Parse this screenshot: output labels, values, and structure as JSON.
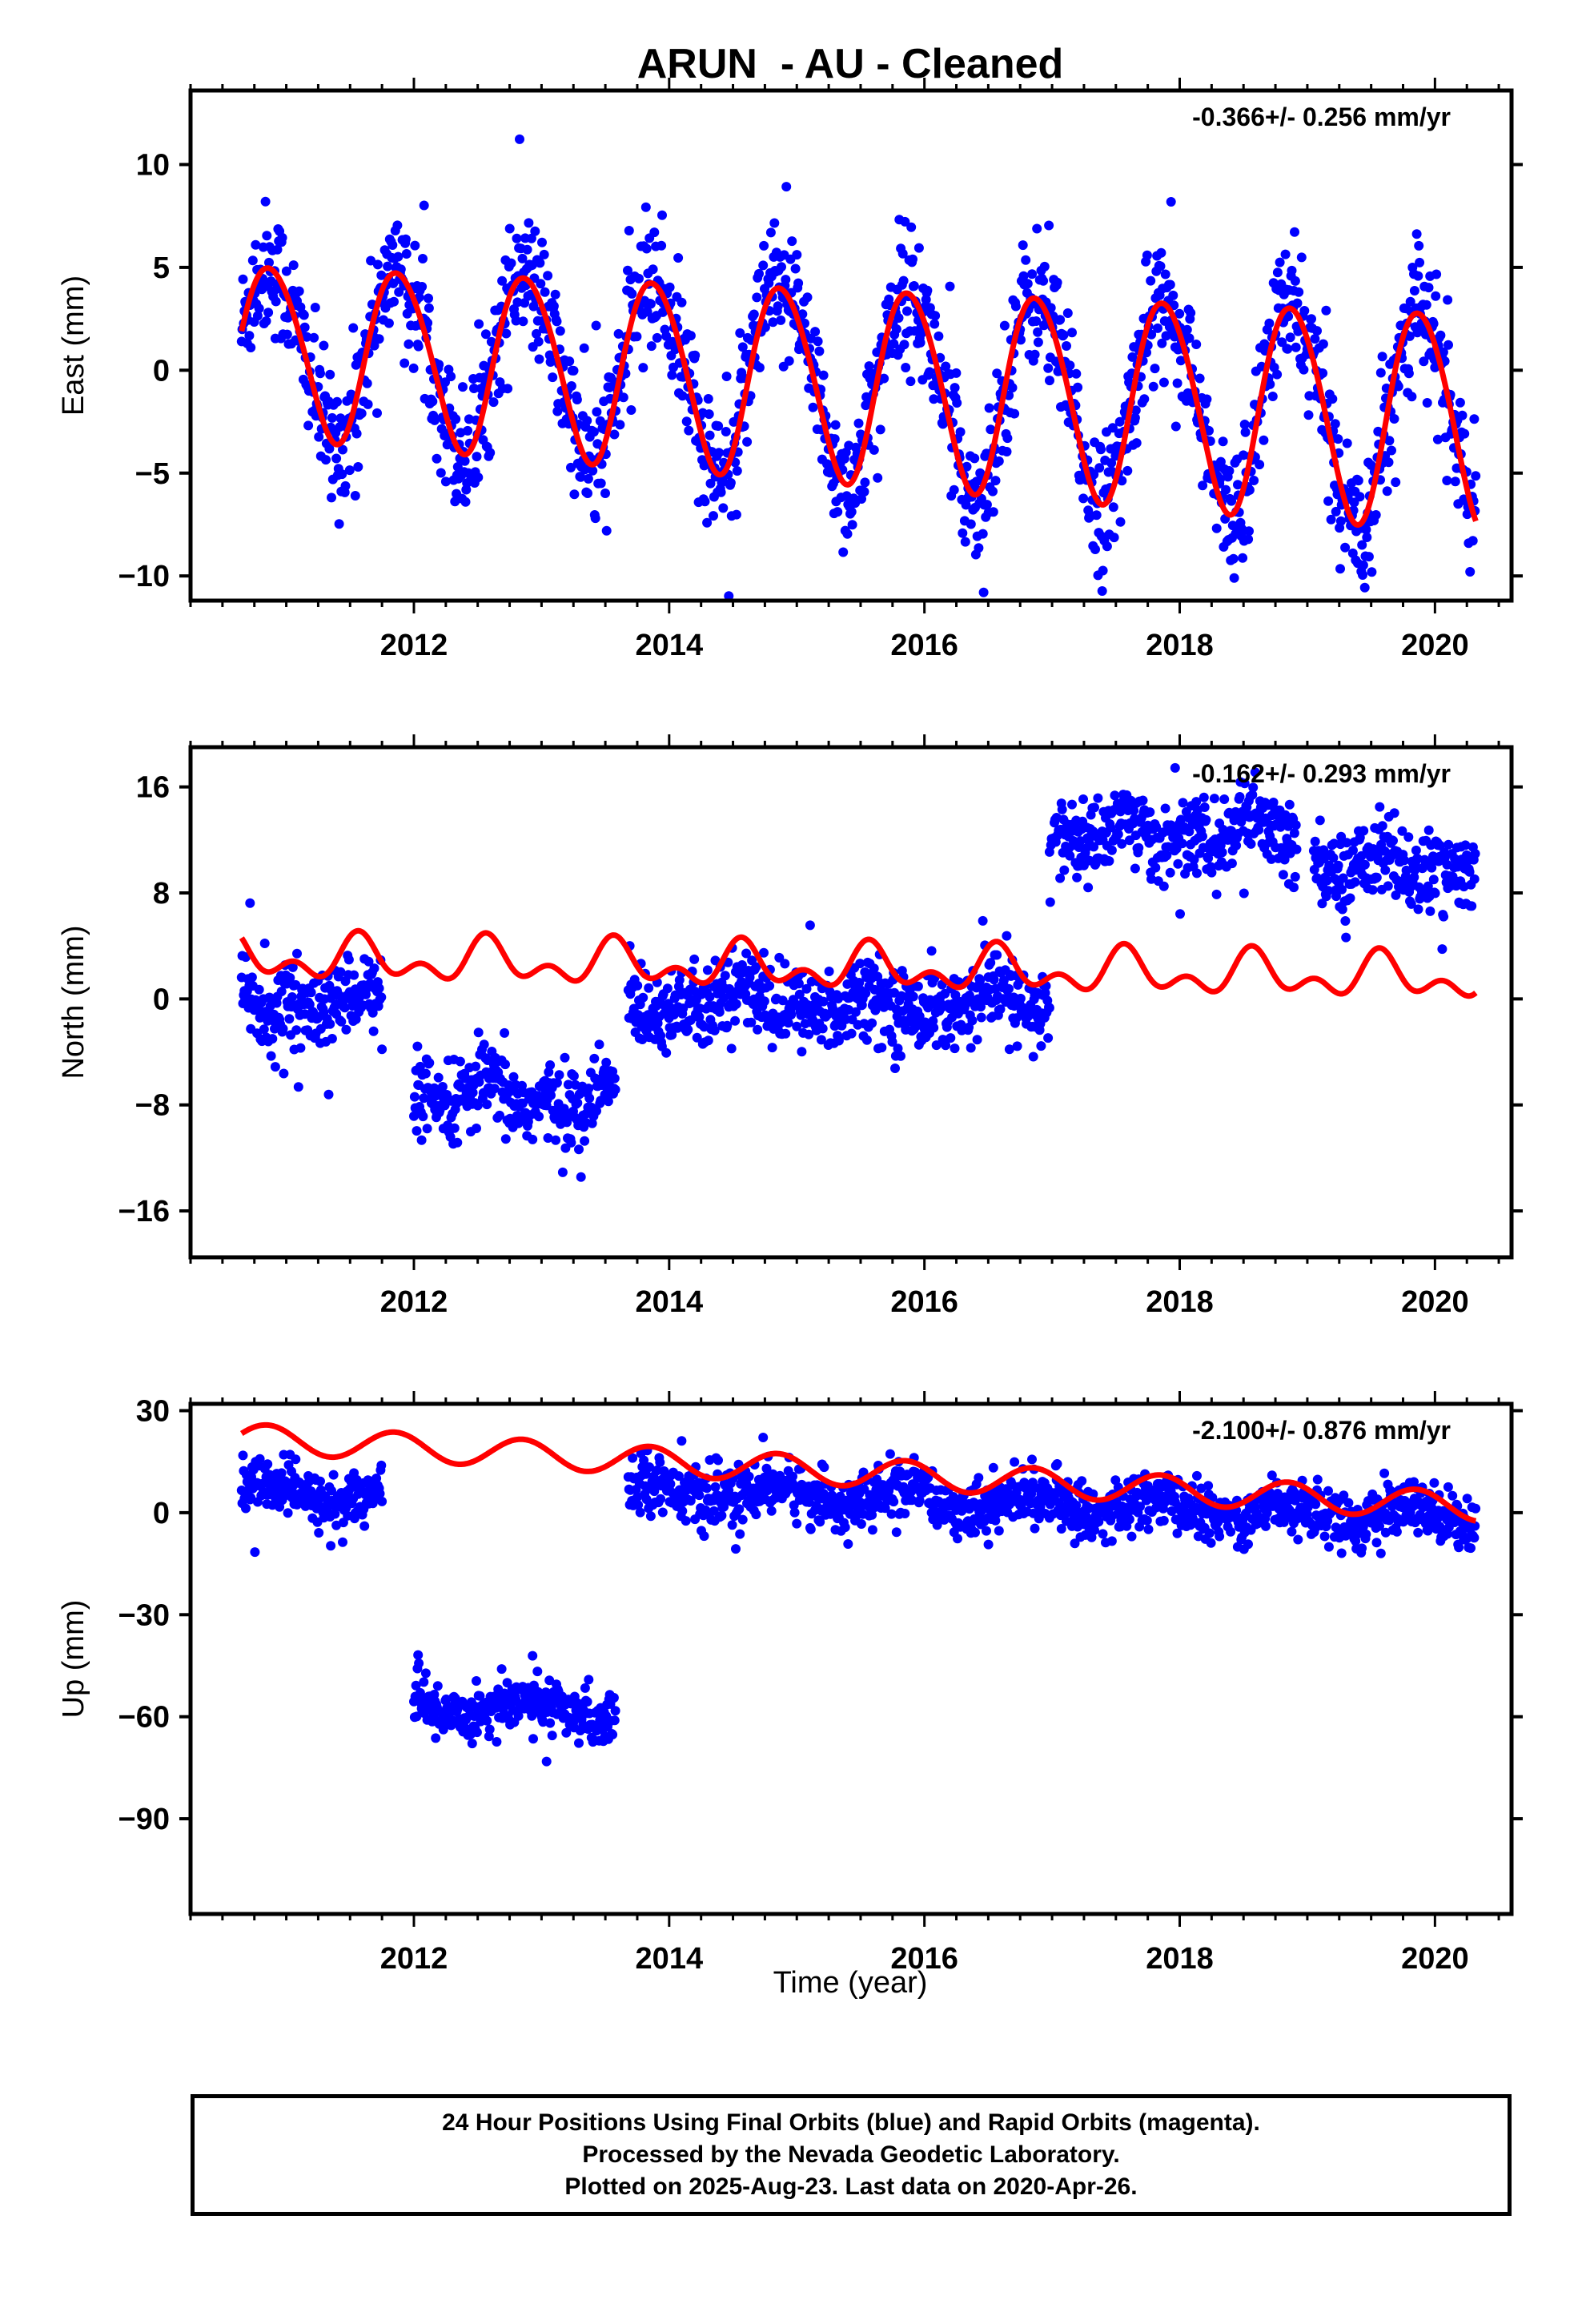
{
  "colors": {
    "final_orbits": "#0000ff",
    "model_fit": "#ff0000",
    "frame": "#000000"
  },
  "chart_data": {
    "type": "scatter",
    "title": "ARUN  - AU - Cleaned",
    "xlabel": "Time (year)",
    "x_ticks": [
      2012,
      2014,
      2016,
      2018,
      2020
    ],
    "x_range": [
      2010.25,
      2020.6
    ],
    "data_span": [
      2010.65,
      2020.32
    ],
    "panels": [
      {
        "component": "East",
        "ylabel": "East (mm)",
        "rate_label": "-0.366+/- 0.256 mm/yr",
        "ylim": [
          -11.2,
          13.6
        ],
        "y_ticks": [
          10,
          5,
          0,
          -5,
          -10
        ],
        "y_tick_labels": [
          "10",
          "5",
          "0",
          "−5",
          "−10"
        ],
        "grid": false,
        "fit": {
          "offset": 1.1,
          "trend": -0.366,
          "annual": 4.1,
          "annual_phase_year": 0.88,
          "annual_growth_per_yr": 0.03,
          "semiannual": 0.35,
          "semiannual_phase_year": 0.2,
          "steps": []
        },
        "scatter": {
          "noise": 1.6,
          "segments": [
            [
              2010.65,
              2020.32
            ]
          ]
        }
      },
      {
        "component": "North",
        "ylabel": "North (mm)",
        "rate_label": "-0.162+/- 0.293 mm/yr",
        "ylim": [
          -19.5,
          19.0
        ],
        "y_ticks": [
          16,
          8,
          0,
          -8,
          -16
        ],
        "y_tick_labels": [
          "16",
          "8",
          "0",
          "−8",
          "−16"
        ],
        "grid": false,
        "fit": {
          "offset": 3.1,
          "trend": -0.162,
          "annual": 1.2,
          "annual_phase_year": 0.58,
          "annual_growth_per_yr": 0.0,
          "semiannual": 1.0,
          "semiannual_phase_year": 0.06,
          "steps": []
        },
        "scatter": {
          "noise": 1.5,
          "segments": [
            [
              2010.65,
              2011.75
            ],
            [
              2012.0,
              2013.58
            ],
            [
              2013.68,
              2016.98
            ],
            [
              2016.98,
              2018.92
            ],
            [
              2019.05,
              2020.32
            ]
          ],
          "segment_levels": [
            -1.0,
            -8.0,
            -1.0,
            12.0,
            10.5
          ]
        }
      },
      {
        "component": "Up",
        "ylabel": "Up (mm)",
        "rate_label": "-2.100+/- 0.876 mm/yr",
        "ylim": [
          -118,
          32
        ],
        "y_ticks": [
          30,
          0,
          -30,
          -60,
          -90
        ],
        "y_tick_labels": [
          "30",
          "0",
          "−30",
          "−60",
          "−90"
        ],
        "grid": false,
        "fit": {
          "offset": 22.0,
          "trend": -2.1,
          "annual": 4.2,
          "annual_phase_year": 0.85,
          "annual_growth_per_yr": 0.0,
          "semiannual": 0.0,
          "semiannual_phase_year": 0.0,
          "steps": []
        },
        "scatter": {
          "noise": 4.0,
          "segments": [
            [
              2010.65,
              2011.75
            ],
            [
              2012.0,
              2013.58
            ],
            [
              2013.68,
              2020.32
            ]
          ],
          "segment_levels": [
            4.0,
            -55.0,
            4.0
          ]
        }
      }
    ]
  },
  "footer": {
    "line1": "24 Hour Positions Using Final Orbits (blue) and Rapid Orbits (magenta).",
    "line2": "Processed by the Nevada Geodetic Laboratory.",
    "line3": "Plotted on 2025-Aug-23. Last data on 2020-Apr-26."
  }
}
